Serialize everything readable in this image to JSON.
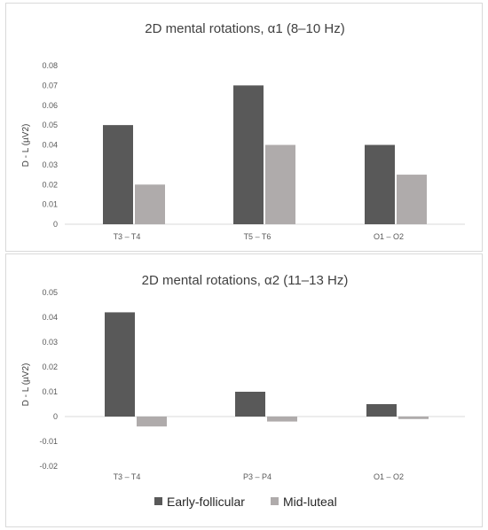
{
  "chart_data": [
    {
      "type": "bar",
      "title": "2D mental rotations, α1 (8–10 Hz)",
      "ylabel": "D - L (µV2)",
      "xlabel": "",
      "categories": [
        "T3 – T4",
        "T5 – T6",
        "O1 – O2"
      ],
      "series": [
        {
          "name": "Early-follicular",
          "values": [
            0.05,
            0.07,
            0.04
          ]
        },
        {
          "name": "Mid-luteal",
          "values": [
            0.02,
            0.04,
            0.025
          ]
        }
      ],
      "ylim": [
        0,
        0.08
      ],
      "yticks": [
        0,
        0.01,
        0.02,
        0.03,
        0.04,
        0.05,
        0.06,
        0.07,
        0.08
      ],
      "ytick_labels": [
        "0",
        "0.01",
        "0.02",
        "0.03",
        "0.04",
        "0.05",
        "0.06",
        "0.07",
        "0.08"
      ],
      "grid": false
    },
    {
      "type": "bar",
      "title": "2D mental rotations, α2 (11–13 Hz)",
      "ylabel": "D - L (µV2)",
      "xlabel": "",
      "categories": [
        "T3 – T4",
        "P3 – P4",
        "O1 – O2"
      ],
      "series": [
        {
          "name": "Early-follicular",
          "values": [
            0.042,
            0.01,
            0.005
          ]
        },
        {
          "name": "Mid-luteal",
          "values": [
            -0.004,
            -0.002,
            -0.001
          ]
        }
      ],
      "ylim": [
        -0.02,
        0.05
      ],
      "yticks": [
        -0.02,
        -0.01,
        0,
        0.01,
        0.02,
        0.03,
        0.04,
        0.05
      ],
      "ytick_labels": [
        "-0.02",
        "-0.01",
        "0",
        "0.01",
        "0.02",
        "0.03",
        "0.04",
        "0.05"
      ],
      "grid": false,
      "legend_position": "bottom"
    }
  ],
  "legend": {
    "items": [
      "Early-follicular",
      "Mid-luteal"
    ]
  },
  "colors": {
    "early_follicular": "#595959",
    "mid_luteal": "#afabab",
    "axis": "#d9d9d9"
  }
}
